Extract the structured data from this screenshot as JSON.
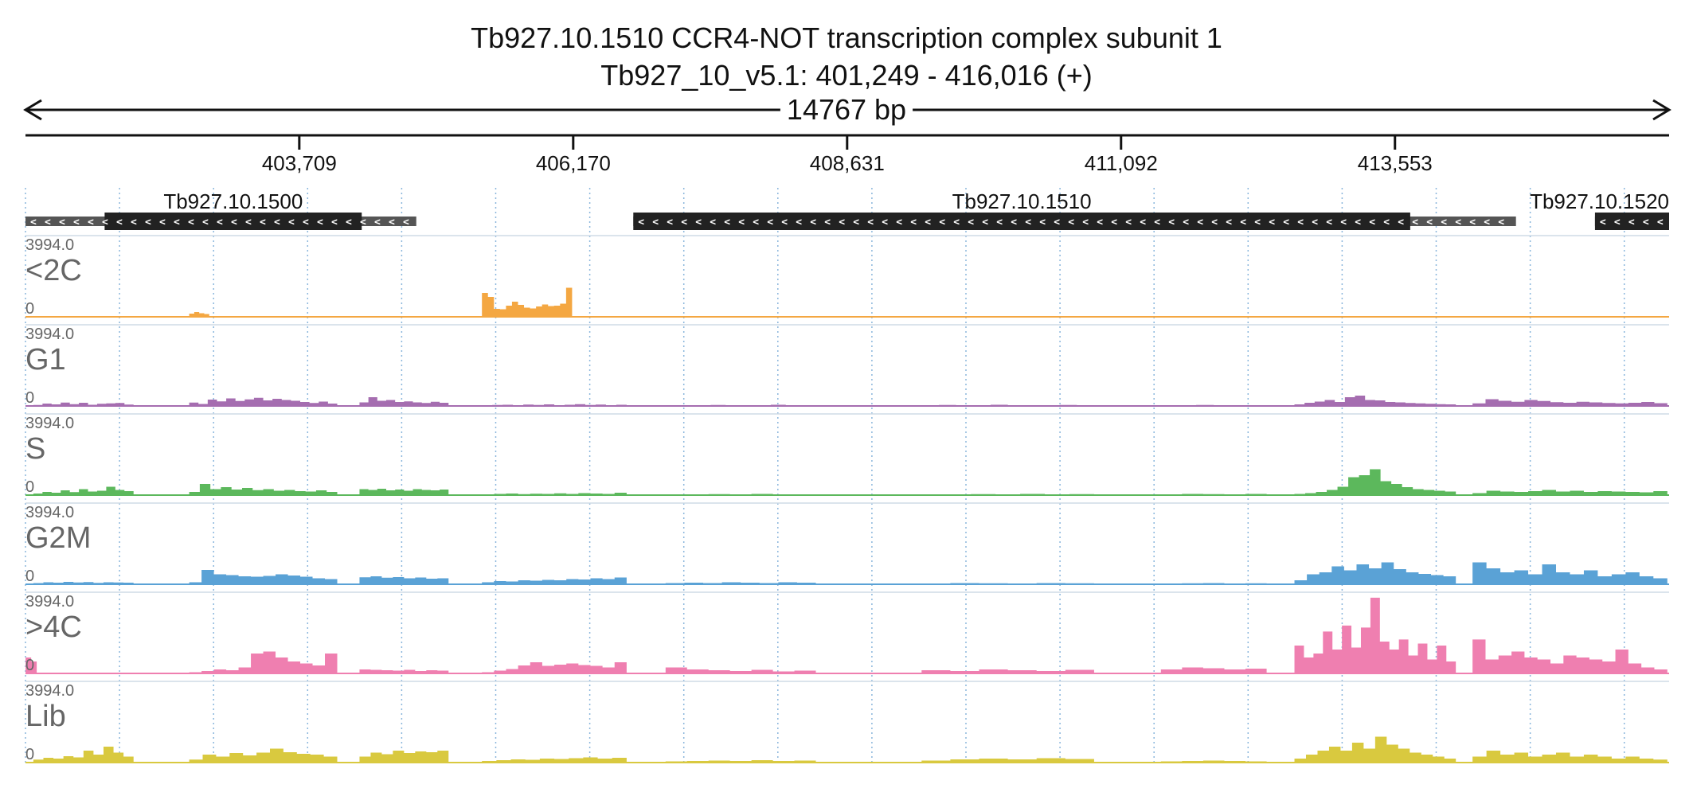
{
  "header": {
    "title_line1": "Tb927.10.1510  CCR4-NOT transcription complex subunit 1",
    "title_line2": "Tb927_10_v5.1: 401,249 - 416,016 (+)",
    "span_label": "14767 bp"
  },
  "chart_data": {
    "type": "area",
    "region": {
      "chrom": "Tb927_10_v5.1",
      "start": 401249,
      "end": 416016,
      "strand": "+"
    },
    "x_ticks": [
      {
        "value": 403709,
        "label": "403,709"
      },
      {
        "value": 406170,
        "label": "406,170"
      },
      {
        "value": 408631,
        "label": "408,631"
      },
      {
        "value": 411092,
        "label": "411,092"
      },
      {
        "value": 413553,
        "label": "413,553"
      }
    ],
    "grid": true,
    "genes": [
      {
        "name": "Tb927.10.1500",
        "utr_start": 401249,
        "cds_start": 401960,
        "cds_end": 404270,
        "utr_end": 404760,
        "strand": "-"
      },
      {
        "name": "Tb927.10.1510",
        "utr_start": 406710,
        "cds_start": 406710,
        "cds_end": 413690,
        "utr_end": 414640,
        "strand": "-"
      },
      {
        "name": "Tb927.10.1520",
        "utr_start": 415350,
        "cds_start": 415350,
        "cds_end": 416016,
        "utr_end": 416016,
        "strand": "-"
      }
    ],
    "tracks": [
      {
        "name": "<2C",
        "color": "#f4a742",
        "ymax": "3994.0",
        "ymin": "0",
        "segments": [
          {
            "start": 401550,
            "end": 401700,
            "values": [
              10,
              14,
              8
            ]
          },
          {
            "start": 402720,
            "end": 402900,
            "values": [
              160,
              240,
              180,
              140
            ]
          },
          {
            "start": 404550,
            "end": 404620,
            "values": [
              20
            ]
          },
          {
            "start": 405350,
            "end": 406160,
            "values": [
              1200,
              1000,
              400,
              380,
              560,
              760,
              600,
              460,
              420,
              520,
              620,
              540,
              560,
              660,
              1460
            ]
          },
          {
            "start": 409300,
            "end": 409500,
            "values": [
              20,
              30,
              20
            ]
          },
          {
            "start": 411300,
            "end": 411450,
            "values": [
              24,
              36,
              24
            ]
          },
          {
            "start": 413500,
            "end": 413750,
            "values": [
              10,
              12,
              10
            ]
          },
          {
            "start": 415650,
            "end": 415850,
            "values": [
              10,
              16,
              10
            ]
          }
        ]
      },
      {
        "name": "G1",
        "color": "#a56db0",
        "ymax": "3994.0",
        "ymin": "0",
        "segments": [
          {
            "start": 401320,
            "end": 402220,
            "values": [
              50,
              120,
              80,
              170,
              90,
              160,
              60,
              110,
              130,
              150,
              70
            ]
          },
          {
            "start": 402720,
            "end": 404050,
            "values": [
              170,
              100,
              320,
              230,
              380,
              250,
              330,
              410,
              280,
              360,
              300,
              260,
              200,
              150,
              220,
              120
            ]
          },
          {
            "start": 404250,
            "end": 405050,
            "values": [
              180,
              440,
              260,
              300,
              200,
              230,
              180,
              150,
              210,
              160
            ]
          },
          {
            "start": 405350,
            "end": 406650,
            "values": [
              30,
              50,
              60,
              40,
              70,
              50,
              80,
              40,
              60,
              90,
              50,
              70,
              40,
              60
            ]
          },
          {
            "start": 407000,
            "end": 408350,
            "values": [
              30,
              40,
              30,
              50,
              40,
              30,
              40,
              60,
              30,
              40
            ]
          },
          {
            "start": 409300,
            "end": 410850,
            "values": [
              30,
              50,
              40,
              30,
              60,
              40,
              30,
              40,
              50,
              30
            ]
          },
          {
            "start": 411450,
            "end": 412400,
            "values": [
              30,
              40,
              50,
              40,
              30,
              40
            ]
          },
          {
            "start": 412650,
            "end": 414100,
            "values": [
              80,
              160,
              220,
              300,
              200,
              440,
              520,
              300,
              280,
              200,
              180,
              150,
              130,
              110,
              90,
              80
            ]
          },
          {
            "start": 414250,
            "end": 416000,
            "values": [
              130,
              340,
              260,
              210,
              300,
              250,
              190,
              160,
              210,
              180,
              150,
              130,
              160,
              200,
              140
            ]
          }
        ]
      },
      {
        "name": "S",
        "color": "#5cb85c",
        "ymax": "3994.0",
        "ymin": "0",
        "segments": [
          {
            "start": 401320,
            "end": 402220,
            "values": [
              80,
              160,
              120,
              240,
              150,
              300,
              180,
              220,
              420,
              260,
              200
            ]
          },
          {
            "start": 402720,
            "end": 404050,
            "values": [
              160,
              560,
              300,
              400,
              280,
              360,
              250,
              300,
              220,
              260,
              200,
              180,
              240,
              160
            ]
          },
          {
            "start": 404250,
            "end": 405050,
            "values": [
              300,
              260,
              320,
              240,
              280,
              220,
              300,
              260,
              240,
              280
            ]
          },
          {
            "start": 405350,
            "end": 406650,
            "values": [
              40,
              60,
              80,
              50,
              70,
              60,
              90,
              60,
              100,
              80,
              60,
              120
            ]
          },
          {
            "start": 407000,
            "end": 408350,
            "values": [
              30,
              40,
              50,
              40,
              60,
              30,
              40
            ]
          },
          {
            "start": 409300,
            "end": 410850,
            "values": [
              30,
              40,
              50,
              30,
              60,
              40,
              50
            ]
          },
          {
            "start": 411450,
            "end": 412400,
            "values": [
              40,
              60,
              50,
              40,
              60
            ]
          },
          {
            "start": 412650,
            "end": 414100,
            "values": [
              60,
              100,
              160,
              260,
              420,
              900,
              1000,
              1300,
              700,
              560,
              400,
              300,
              260,
              220,
              180
            ]
          },
          {
            "start": 414250,
            "end": 416000,
            "values": [
              100,
              220,
              180,
              160,
              200,
              260,
              180,
              220,
              160,
              200,
              180,
              160,
              140,
              200
            ]
          }
        ]
      },
      {
        "name": "G2M",
        "color": "#5aa2d6",
        "ymax": "3994.0",
        "ymin": "0",
        "segments": [
          {
            "start": 401320,
            "end": 402220,
            "values": [
              60,
              100,
              80,
              120,
              90,
              110,
              70,
              100,
              90,
              80
            ]
          },
          {
            "start": 402720,
            "end": 404050,
            "values": [
              100,
              720,
              500,
              460,
              400,
              380,
              420,
              500,
              440,
              380,
              300,
              260
            ]
          },
          {
            "start": 404250,
            "end": 405050,
            "values": [
              350,
              400,
              330,
              360,
              300,
              340,
              280,
              300
            ]
          },
          {
            "start": 405350,
            "end": 406650,
            "values": [
              100,
              160,
              140,
              200,
              180,
              220,
              200,
              260,
              240,
              300,
              260,
              340
            ]
          },
          {
            "start": 407000,
            "end": 408350,
            "values": [
              60,
              80,
              60,
              100,
              80,
              60,
              100,
              80
            ]
          },
          {
            "start": 409300,
            "end": 410850,
            "values": [
              40,
              60,
              50,
              40,
              60,
              50
            ]
          },
          {
            "start": 411450,
            "end": 412400,
            "values": [
              40,
              50,
              60,
              40,
              50
            ]
          },
          {
            "start": 412650,
            "end": 414100,
            "values": [
              200,
              500,
              600,
              900,
              700,
              1000,
              800,
              1100,
              760,
              600,
              520,
              460,
              400
            ]
          },
          {
            "start": 414250,
            "end": 416000,
            "values": [
              1100,
              800,
              600,
              700,
              500,
              1000,
              600,
              500,
              700,
              400,
              500,
              600,
              400,
              300
            ]
          }
        ]
      },
      {
        "name": ">4C",
        "color": "#ef7fb0",
        "ymax": "3994.0",
        "ymin": "0",
        "segments": [
          {
            "start": 401250,
            "end": 401350,
            "values": [
              800,
              600
            ]
          },
          {
            "start": 402720,
            "end": 404050,
            "values": [
              60,
              120,
              200,
              160,
              300,
              1000,
              1100,
              800,
              600,
              500,
              400,
              1000
            ]
          },
          {
            "start": 404250,
            "end": 405050,
            "values": [
              200,
              180,
              160,
              140,
              180,
              120,
              160,
              140
            ]
          },
          {
            "start": 405350,
            "end": 406650,
            "values": [
              60,
              140,
              220,
              400,
              560,
              380,
              440,
              500,
              420,
              380,
              300,
              560
            ]
          },
          {
            "start": 407000,
            "end": 408350,
            "values": [
              300,
              200,
              160,
              120,
              180,
              100,
              140
            ]
          },
          {
            "start": 409300,
            "end": 410850,
            "values": [
              160,
              120,
              200,
              160,
              120,
              180
            ]
          },
          {
            "start": 411450,
            "end": 412400,
            "values": [
              200,
              300,
              260,
              200,
              240
            ]
          },
          {
            "start": 412650,
            "end": 414100,
            "values": [
              1400,
              800,
              1000,
              2100,
              1200,
              2400,
              1300,
              2300,
              3800,
              1600,
              1200,
              1700,
              900,
              1500,
              700,
              1400,
              600
            ]
          },
          {
            "start": 414250,
            "end": 416000,
            "values": [
              1700,
              700,
              900,
              1100,
              800,
              700,
              500,
              900,
              800,
              700,
              600,
              1200,
              500,
              300,
              200
            ]
          }
        ]
      },
      {
        "name": "Lib",
        "color": "#d9c93f",
        "ymax": "3994.0",
        "ymin": "0",
        "segments": [
          {
            "start": 401320,
            "end": 402220,
            "values": [
              150,
              240,
              200,
              320,
              260,
              600,
              400,
              800,
              500,
              300
            ]
          },
          {
            "start": 402720,
            "end": 404050,
            "values": [
              150,
              400,
              300,
              480,
              360,
              500,
              700,
              520,
              440,
              400,
              300
            ]
          },
          {
            "start": 404250,
            "end": 405050,
            "values": [
              300,
              500,
              420,
              600,
              480,
              560,
              520,
              600
            ]
          },
          {
            "start": 405350,
            "end": 406650,
            "values": [
              80,
              120,
              160,
              140,
              200,
              180,
              220,
              260,
              200,
              240
            ]
          },
          {
            "start": 407000,
            "end": 408350,
            "values": [
              60,
              80,
              100,
              80,
              120,
              80,
              100
            ]
          },
          {
            "start": 409300,
            "end": 410850,
            "values": [
              100,
              160,
              200,
              160,
              220,
              180
            ]
          },
          {
            "start": 411450,
            "end": 412400,
            "values": [
              60,
              80,
              100,
              80,
              60
            ]
          },
          {
            "start": 412650,
            "end": 414100,
            "values": [
              200,
              400,
              600,
              800,
              600,
              1000,
              700,
              1300,
              900,
              700,
              500,
              400,
              300,
              200
            ]
          },
          {
            "start": 414250,
            "end": 416000,
            "values": [
              300,
              600,
              400,
              500,
              300,
              400,
              500,
              300,
              400,
              300,
              200,
              300,
              200,
              150
            ]
          }
        ]
      }
    ]
  }
}
